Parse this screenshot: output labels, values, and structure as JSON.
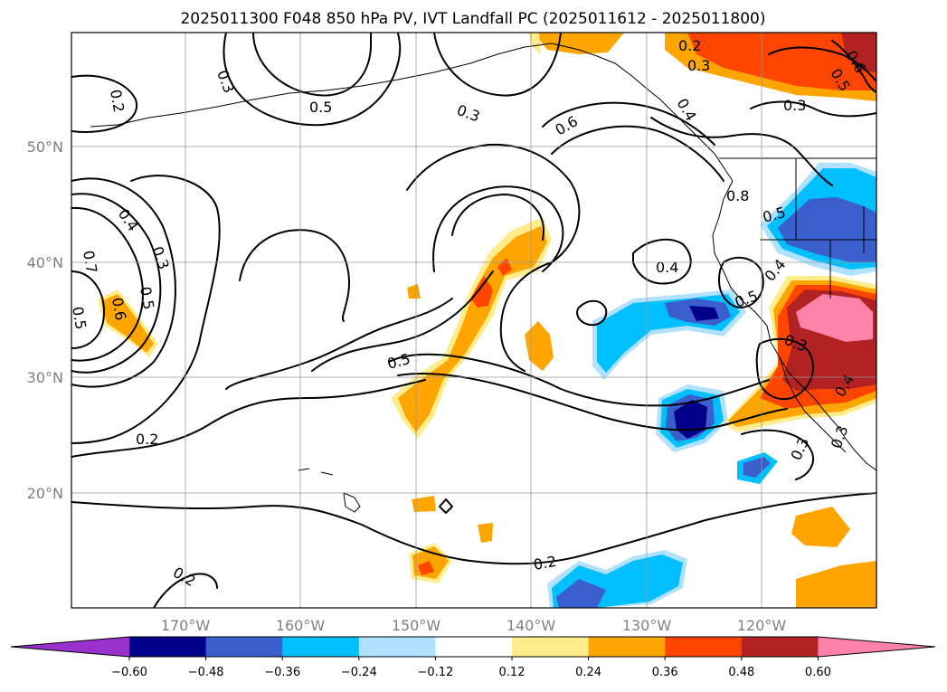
{
  "title": "2025011300 F048 850 hPa PV, IVT Landfall PC (2025011612 - 2025011800)",
  "map": {
    "lon_labels": [
      "170°W",
      "160°W",
      "150°W",
      "140°W",
      "130°W",
      "120°W"
    ],
    "lat_labels": [
      "50°N",
      "40°N",
      "30°N",
      "20°N"
    ]
  },
  "contour_labels": [
    "0.2",
    "0.3",
    "0.5",
    "0.3",
    "0.6",
    "0.4",
    "0.2",
    "0.3",
    "0.6",
    "0.5",
    "0.3",
    "0.8",
    "0.5",
    "0.4",
    "0.5",
    "0.4",
    "0.7",
    "0.4",
    "0.3",
    "0.5",
    "0.6",
    "0.5",
    "0.5",
    "0.2",
    "0.3",
    "0.3",
    "0.2",
    "0.2",
    "0.3",
    "0.4"
  ],
  "colorbar": {
    "colors": [
      "#9932cc",
      "#00008b",
      "#3a5fcd",
      "#00bfff",
      "#b0e2ff",
      "#ffffff",
      "#ffec8b",
      "#ffa500",
      "#ff4500",
      "#b22222",
      "#ff82ab"
    ],
    "tick_labels": [
      "−0.60",
      "−0.48",
      "−0.36",
      "−0.24",
      "−0.12",
      "0.12",
      "0.24",
      "0.36",
      "0.48",
      "0.60"
    ]
  }
}
